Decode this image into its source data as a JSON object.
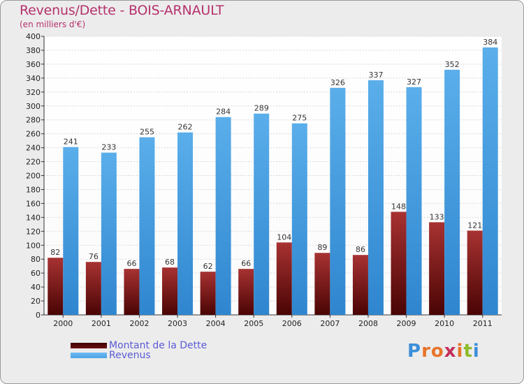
{
  "title": "Revenus/Dette - BOIS-ARNAULT",
  "subtitle": "(en milliers d'€)",
  "colors": {
    "frame_bg": "#ececec",
    "title": "#b5316d",
    "debt_bar": "#8b1a1a",
    "revenue_bar": "#4da3e6",
    "legend_text": "#5b5bd6"
  },
  "chart_data": {
    "type": "bar",
    "categories": [
      "2000",
      "2001",
      "2002",
      "2003",
      "2004",
      "2005",
      "2006",
      "2007",
      "2008",
      "2009",
      "2010",
      "2011"
    ],
    "series": [
      {
        "name": "Montant de la Dette",
        "values": [
          82,
          76,
          66,
          68,
          62,
          66,
          104,
          89,
          86,
          148,
          133,
          121
        ]
      },
      {
        "name": "Revenus",
        "values": [
          241,
          233,
          255,
          262,
          284,
          289,
          275,
          326,
          337,
          327,
          352,
          384
        ]
      }
    ],
    "ylim": [
      0,
      400
    ],
    "ytick_step": 20,
    "grid": true,
    "legend_position": "bottom-left"
  },
  "legend": [
    {
      "label": "Montant de la Dette",
      "color": "#6b0f0f"
    },
    {
      "label": "Revenus",
      "color": "#4da3e6"
    }
  ],
  "logo": {
    "letters": [
      "P",
      "r",
      "o",
      "x",
      "i",
      "t",
      "i"
    ],
    "letter_colors": [
      "#3b8fd9",
      "#e8742a",
      "#e8742a",
      "#c22f5a",
      "#e8742a",
      "#8dbb2c",
      "#3b8fd9"
    ]
  }
}
